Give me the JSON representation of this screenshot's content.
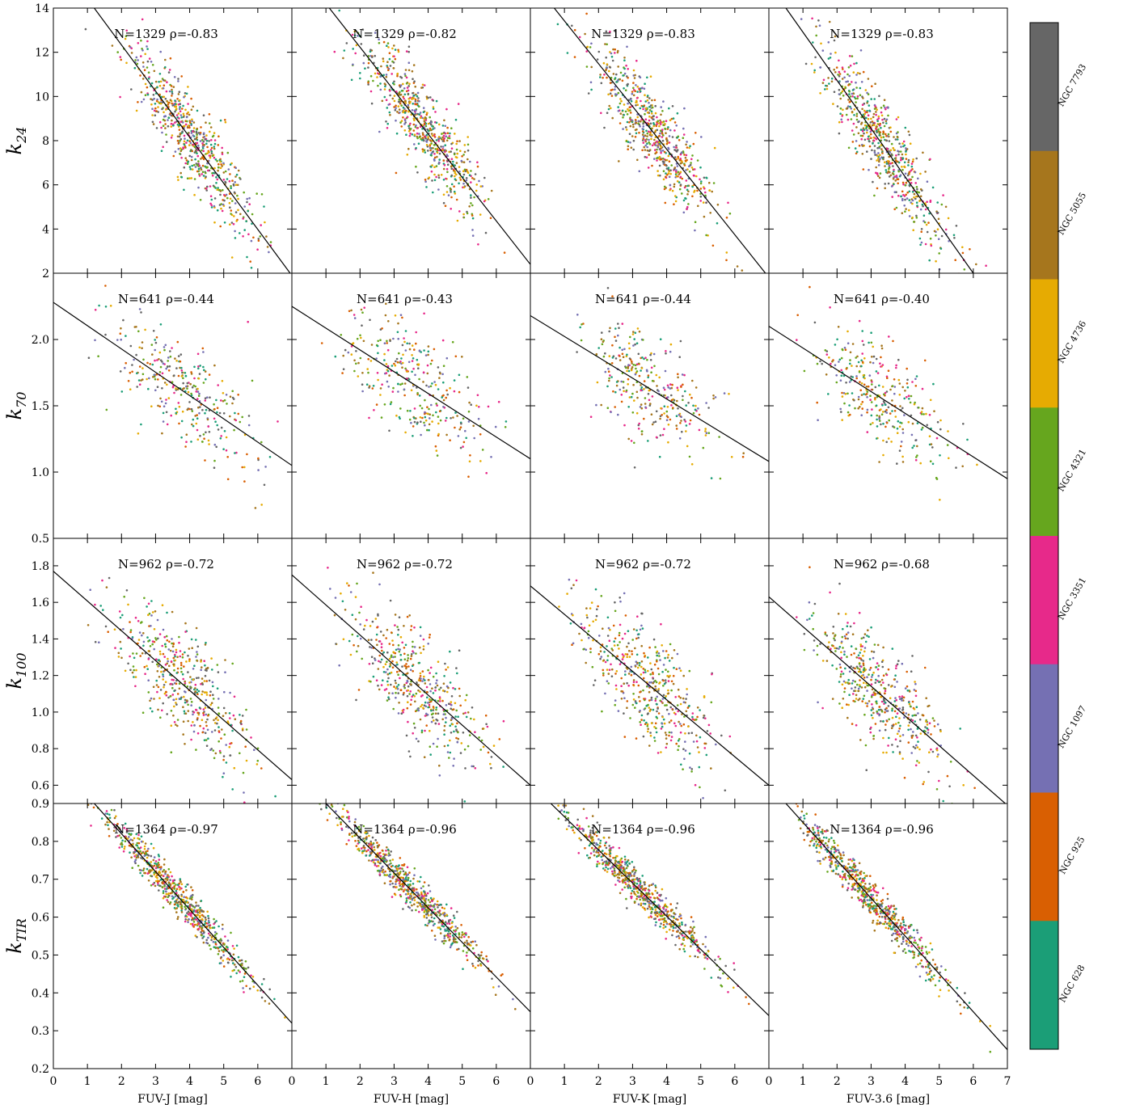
{
  "chart_data": {
    "type": "scatter",
    "columns": [
      {
        "xlabel": "FUV-J [mag]"
      },
      {
        "xlabel": "FUV-H [mag]"
      },
      {
        "xlabel": "FUV-K [mag]"
      },
      {
        "xlabel": "FUV-3.6 [mag]"
      }
    ],
    "x_ticks": [
      "0",
      "1",
      "2",
      "3",
      "4",
      "5",
      "6"
    ],
    "x_ticks_last": [
      "0",
      "1",
      "2",
      "3",
      "4",
      "5",
      "6",
      "7"
    ],
    "xlim": [
      0,
      7
    ],
    "rows": [
      {
        "ylabel_main": "k",
        "ylabel_sub": "24",
        "ylim": [
          2,
          14
        ],
        "yticks": [
          2,
          4,
          6,
          8,
          10,
          12,
          14
        ],
        "ytick_labels": [
          "2",
          "4",
          "6",
          "8",
          "10",
          "12",
          "14"
        ],
        "trend": {
          "center_x": 4.0,
          "center_y": 7.5,
          "spread_x": 0.9,
          "spread_y": 1.1,
          "n": 650
        },
        "panels": [
          {
            "annotation": "N=1329 ρ=-0.83",
            "fit": [
              [
                1.2,
                14
              ],
              [
                6.95,
                2.0
              ]
            ]
          },
          {
            "annotation": "N=1329 ρ=-0.82",
            "fit": [
              [
                1.1,
                14
              ],
              [
                7.0,
                2.4
              ]
            ]
          },
          {
            "annotation": "N=1329 ρ=-0.83",
            "fit": [
              [
                0.7,
                14
              ],
              [
                6.9,
                2.0
              ]
            ]
          },
          {
            "annotation": "N=1329 ρ=-0.83",
            "fit": [
              [
                0.5,
                14
              ],
              [
                6.0,
                2.0
              ]
            ]
          }
        ]
      },
      {
        "ylabel_main": "k",
        "ylabel_sub": "70",
        "ylim": [
          0.5,
          2.5
        ],
        "yticks": [
          0.5,
          1.0,
          1.5,
          2.0
        ],
        "ytick_labels": [
          "0.5",
          "1.0",
          "1.5",
          "2.0"
        ],
        "trend": {
          "center_x": 3.8,
          "center_y": 1.6,
          "spread_x": 1.0,
          "spread_y": 0.3,
          "n": 320
        },
        "panels": [
          {
            "annotation": "N=641 ρ=-0.44",
            "fit": [
              [
                0,
                2.28
              ],
              [
                7,
                1.05
              ]
            ]
          },
          {
            "annotation": "N=641 ρ=-0.43",
            "fit": [
              [
                0,
                2.25
              ],
              [
                7,
                1.1
              ]
            ]
          },
          {
            "annotation": "N=641 ρ=-0.44",
            "fit": [
              [
                0,
                2.18
              ],
              [
                7,
                1.08
              ]
            ]
          },
          {
            "annotation": "N=641 ρ=-0.40",
            "fit": [
              [
                0,
                2.1
              ],
              [
                7,
                0.95
              ]
            ]
          }
        ]
      },
      {
        "ylabel_main": "k",
        "ylabel_sub": "100",
        "ylim": [
          0.5,
          1.95
        ],
        "yticks": [
          0.6,
          0.8,
          1.0,
          1.2,
          1.4,
          1.6,
          1.8
        ],
        "ytick_labels": [
          "0.6",
          "0.8",
          "1.0",
          "1.2",
          "1.4",
          "1.6",
          "1.8"
        ],
        "trend": {
          "center_x": 3.8,
          "center_y": 1.15,
          "spread_x": 1.0,
          "spread_y": 0.2,
          "n": 480
        },
        "panels": [
          {
            "annotation": "N=962 ρ=-0.72",
            "fit": [
              [
                0,
                1.77
              ],
              [
                7,
                0.63
              ]
            ]
          },
          {
            "annotation": "N=962 ρ=-0.72",
            "fit": [
              [
                0,
                1.75
              ],
              [
                7,
                0.6
              ]
            ]
          },
          {
            "annotation": "N=962 ρ=-0.72",
            "fit": [
              [
                0,
                1.69
              ],
              [
                7,
                0.6
              ]
            ]
          },
          {
            "annotation": "N=962 ρ=-0.68",
            "fit": [
              [
                0,
                1.63
              ],
              [
                7,
                0.49
              ]
            ]
          }
        ]
      },
      {
        "ylabel_main": "k",
        "ylabel_sub": "TIR",
        "ylim": [
          0.2,
          0.9
        ],
        "yticks": [
          0.2,
          0.3,
          0.4,
          0.5,
          0.6,
          0.7,
          0.8,
          0.9
        ],
        "ytick_labels": [
          "0.2",
          "0.3",
          "0.4",
          "0.5",
          "0.6",
          "0.7",
          "0.8",
          "0.9"
        ],
        "trend": {
          "center_x": 3.6,
          "center_y": 0.63,
          "spread_x": 1.1,
          "spread_y": 0.02,
          "n": 680
        },
        "panels": [
          {
            "annotation": "N=1364 ρ=-0.97",
            "fit": [
              [
                1.2,
                0.9
              ],
              [
                7,
                0.32
              ]
            ]
          },
          {
            "annotation": "N=1364 ρ=-0.96",
            "fit": [
              [
                1.0,
                0.9
              ],
              [
                7,
                0.35
              ]
            ]
          },
          {
            "annotation": "N=1364 ρ=-0.96",
            "fit": [
              [
                0.6,
                0.9
              ],
              [
                7,
                0.34
              ]
            ]
          },
          {
            "annotation": "N=1364 ρ=-0.96",
            "fit": [
              [
                0.5,
                0.9
              ],
              [
                7,
                0.25
              ]
            ]
          }
        ]
      }
    ],
    "colorbar": {
      "labels": [
        "NGC 7793",
        "NGC 5055",
        "NGC 4736",
        "NGC 4321",
        "NGC 3351",
        "NGC 1097",
        "NGC 925",
        "NGC 628"
      ],
      "colors": [
        "#666666",
        "#a6761d",
        "#e6ab02",
        "#66a61e",
        "#e7298a",
        "#7570b3",
        "#d95f02",
        "#1b9e77"
      ]
    }
  }
}
